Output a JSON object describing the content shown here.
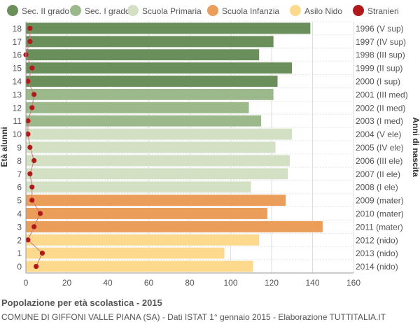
{
  "chart_data": {
    "type": "bar",
    "orientation": "horizontal",
    "title": "Popolazione per età scolastica - 2015",
    "subtitle": "COMUNE DI GIFFONI VALLE PIANA (SA) - Dati ISTAT 1° gennaio 2015 - Elaborazione TUTTITALIA.IT",
    "ylabel_left": "Età alunni",
    "ylabel_right": "Anni di nascita",
    "xlim": [
      0,
      160
    ],
    "xticks": [
      0,
      20,
      40,
      60,
      80,
      100,
      120,
      140,
      160
    ],
    "grid": true,
    "legend_position": "top",
    "legend": [
      {
        "label": "Sec. II grado",
        "color": "#6b8f5a"
      },
      {
        "label": "Sec. I grado",
        "color": "#9cb98c"
      },
      {
        "label": "Scuola Primaria",
        "color": "#d4e0c4"
      },
      {
        "label": "Scuola Infanzia",
        "color": "#eb9d5a"
      },
      {
        "label": "Asilo Nido",
        "color": "#fcd98c"
      },
      {
        "label": "Stranieri",
        "color": "#b01a1a"
      }
    ],
    "ages": [
      18,
      17,
      16,
      15,
      14,
      13,
      12,
      11,
      10,
      9,
      8,
      7,
      6,
      5,
      4,
      3,
      2,
      1,
      0
    ],
    "birth_years": [
      "1996 (V sup)",
      "1997 (IV sup)",
      "1998 (III sup)",
      "1999 (II sup)",
      "2000 (I sup)",
      "2001 (III med)",
      "2002 (II med)",
      "2003 (I med)",
      "2004 (V ele)",
      "2005 (IV ele)",
      "2006 (III ele)",
      "2007 (II ele)",
      "2008 (I ele)",
      "2009 (mater)",
      "2010 (mater)",
      "2011 (mater)",
      "2012 (nido)",
      "2013 (nido)",
      "2014 (nido)"
    ],
    "categories_by_row": [
      "Sec. II grado",
      "Sec. II grado",
      "Sec. II grado",
      "Sec. II grado",
      "Sec. II grado",
      "Sec. I grado",
      "Sec. I grado",
      "Sec. I grado",
      "Scuola Primaria",
      "Scuola Primaria",
      "Scuola Primaria",
      "Scuola Primaria",
      "Scuola Primaria",
      "Scuola Infanzia",
      "Scuola Infanzia",
      "Scuola Infanzia",
      "Asilo Nido",
      "Asilo Nido",
      "Asilo Nido"
    ],
    "values": [
      139,
      121,
      114,
      130,
      123,
      121,
      109,
      115,
      130,
      122,
      129,
      128,
      110,
      127,
      118,
      145,
      114,
      97,
      111
    ],
    "stranieri": [
      2,
      2,
      0,
      3,
      1,
      4,
      3,
      1,
      1,
      2,
      4,
      2,
      3,
      3,
      7,
      4,
      1,
      8,
      5
    ]
  }
}
